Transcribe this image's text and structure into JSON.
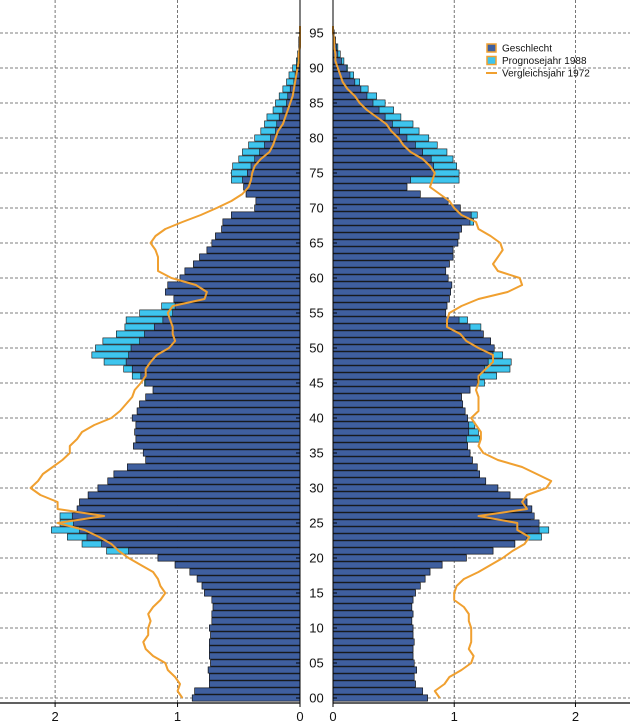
{
  "chart_data": {
    "type": "bar",
    "orientation": "horizontal",
    "layout": "population-pyramid",
    "colors": {
      "base": "#3f5f9f",
      "overlay": "#3ec5ee",
      "line": "#f0a030",
      "bar_edge": "#111111",
      "grid": "#555555"
    },
    "legend": {
      "position": "top-right",
      "entries": [
        {
          "label": "Geschlecht",
          "kind": "swatch",
          "color": "#3f5f9f"
        },
        {
          "label": "Prognosejahr 1988",
          "kind": "swatch",
          "color": "#3ec5ee"
        },
        {
          "label": "Vergleichsjahr 1972",
          "kind": "line",
          "color": "#f0a030"
        }
      ]
    },
    "y_axis": {
      "range": [
        0,
        96
      ],
      "ticks": [
        0,
        5,
        10,
        15,
        20,
        25,
        30,
        35,
        40,
        45,
        50,
        55,
        60,
        65,
        70,
        75,
        80,
        85,
        90,
        95
      ],
      "tick_labels": [
        "00",
        "05",
        "10",
        "15",
        "20",
        "25",
        "30",
        "35",
        "40",
        "45",
        "50",
        "55",
        "60",
        "65",
        "70",
        "75",
        "80",
        "85",
        "90",
        "95"
      ]
    },
    "x_axis_left": {
      "range": [
        0,
        2.45
      ],
      "ticks": [
        0,
        1,
        2
      ],
      "tick_labels": [
        "0",
        "1",
        "2"
      ],
      "direction": "reversed"
    },
    "x_axis_right": {
      "range": [
        0,
        2.45
      ],
      "ticks": [
        0,
        1,
        2
      ],
      "tick_labels": [
        "0",
        "1",
        "2"
      ]
    },
    "ages": [
      0,
      1,
      2,
      3,
      4,
      5,
      6,
      7,
      8,
      9,
      10,
      11,
      12,
      13,
      14,
      15,
      16,
      17,
      18,
      19,
      20,
      21,
      22,
      23,
      24,
      25,
      26,
      27,
      28,
      29,
      30,
      31,
      32,
      33,
      34,
      35,
      36,
      37,
      38,
      39,
      40,
      41,
      42,
      43,
      44,
      45,
      46,
      47,
      48,
      49,
      50,
      51,
      52,
      53,
      54,
      55,
      56,
      57,
      58,
      59,
      60,
      61,
      62,
      63,
      64,
      65,
      66,
      67,
      68,
      69,
      70,
      71,
      72,
      73,
      74,
      75,
      76,
      77,
      78,
      79,
      80,
      81,
      82,
      83,
      84,
      85,
      86,
      87,
      88,
      89,
      90,
      91,
      92,
      93,
      94,
      95,
      96
    ],
    "series": [
      {
        "name": "Geschlecht",
        "side": "left",
        "values": [
          0.88,
          0.86,
          0.74,
          0.74,
          0.75,
          0.73,
          0.74,
          0.74,
          0.74,
          0.73,
          0.74,
          0.72,
          0.72,
          0.71,
          0.72,
          0.78,
          0.8,
          0.84,
          0.9,
          1.02,
          1.16,
          1.4,
          1.62,
          1.74,
          1.8,
          1.85,
          1.86,
          1.82,
          1.8,
          1.73,
          1.65,
          1.57,
          1.52,
          1.41,
          1.26,
          1.28,
          1.36,
          1.34,
          1.35,
          1.34,
          1.37,
          1.33,
          1.31,
          1.26,
          1.2,
          1.26,
          1.3,
          1.37,
          1.42,
          1.4,
          1.38,
          1.31,
          1.27,
          1.19,
          1.12,
          1.04,
          1.02,
          1.03,
          1.1,
          1.08,
          0.98,
          0.94,
          0.87,
          0.82,
          0.76,
          0.72,
          0.69,
          0.64,
          0.63,
          0.56,
          0.37,
          0.36,
          0.44,
          0.46,
          0.47,
          0.43,
          0.4,
          0.37,
          0.33,
          0.29,
          0.24,
          0.2,
          0.19,
          0.17,
          0.14,
          0.11,
          0.1,
          0.08,
          0.05,
          0.04,
          0.03,
          0.02,
          0.01,
          0.01,
          0.01,
          0.0,
          0.0
        ]
      },
      {
        "name": "Prognosejahr 1988",
        "side": "left",
        "values": [
          0.88,
          0.86,
          0.74,
          0.74,
          0.75,
          0.73,
          0.74,
          0.74,
          0.74,
          0.73,
          0.74,
          0.72,
          0.72,
          0.71,
          0.72,
          0.78,
          0.8,
          0.84,
          0.9,
          1.02,
          1.16,
          1.58,
          1.78,
          1.9,
          2.03,
          1.96,
          1.96,
          1.82,
          1.8,
          1.73,
          1.65,
          1.57,
          1.52,
          1.41,
          1.26,
          1.28,
          1.36,
          1.34,
          1.35,
          1.34,
          1.37,
          1.33,
          1.31,
          1.26,
          1.2,
          1.27,
          1.37,
          1.44,
          1.6,
          1.7,
          1.67,
          1.61,
          1.5,
          1.43,
          1.42,
          1.31,
          1.13,
          1.03,
          1.1,
          1.08,
          0.98,
          0.94,
          0.87,
          0.82,
          0.76,
          0.72,
          0.69,
          0.64,
          0.63,
          0.56,
          0.37,
          0.36,
          0.44,
          0.46,
          0.56,
          0.56,
          0.55,
          0.5,
          0.47,
          0.42,
          0.37,
          0.32,
          0.29,
          0.27,
          0.22,
          0.2,
          0.17,
          0.14,
          0.11,
          0.09,
          0.06,
          0.03,
          0.02,
          0.01,
          0.01,
          0.0,
          0.0
        ]
      },
      {
        "name": "Vergleichsjahr 1972",
        "side": "left",
        "kind": "line",
        "values": [
          0.96,
          1.0,
          0.98,
          1.02,
          1.08,
          1.1,
          1.2,
          1.26,
          1.28,
          1.24,
          1.24,
          1.22,
          1.24,
          1.2,
          1.14,
          1.1,
          1.14,
          1.16,
          1.2,
          1.3,
          1.4,
          1.48,
          1.54,
          1.64,
          1.76,
          1.98,
          1.6,
          1.98,
          1.98,
          2.12,
          2.2,
          2.14,
          2.1,
          2.02,
          1.94,
          1.88,
          1.88,
          1.82,
          1.78,
          1.68,
          1.54,
          1.47,
          1.42,
          1.37,
          1.35,
          1.3,
          1.26,
          1.26,
          1.22,
          1.17,
          1.07,
          1.02,
          1.04,
          1.04,
          1.06,
          1.08,
          1.04,
          0.78,
          0.76,
          0.85,
          1.05,
          1.16,
          1.16,
          1.16,
          1.18,
          1.22,
          1.18,
          1.1,
          0.96,
          0.81,
          0.68,
          0.56,
          0.47,
          0.42,
          0.4,
          0.39,
          0.37,
          0.32,
          0.25,
          0.22,
          0.2,
          0.18,
          0.14,
          0.12,
          0.1,
          0.08,
          0.06,
          0.05,
          0.04,
          0.03,
          0.02,
          0.01,
          0.01,
          0.0,
          0.0,
          0.0,
          0.0
        ]
      },
      {
        "name": "Geschlecht",
        "side": "right",
        "values": [
          0.78,
          0.74,
          0.68,
          0.67,
          0.69,
          0.67,
          0.66,
          0.66,
          0.67,
          0.66,
          0.66,
          0.65,
          0.66,
          0.65,
          0.66,
          0.68,
          0.72,
          0.76,
          0.8,
          0.9,
          1.1,
          1.32,
          1.5,
          1.6,
          1.7,
          1.7,
          1.66,
          1.64,
          1.6,
          1.46,
          1.36,
          1.26,
          1.21,
          1.19,
          1.15,
          1.13,
          1.11,
          1.1,
          1.12,
          1.12,
          1.11,
          1.09,
          1.07,
          1.06,
          1.13,
          1.19,
          1.21,
          1.25,
          1.28,
          1.32,
          1.33,
          1.3,
          1.24,
          1.13,
          1.04,
          0.93,
          0.94,
          0.96,
          0.97,
          0.98,
          0.95,
          0.93,
          0.96,
          0.99,
          0.99,
          1.03,
          1.04,
          1.06,
          1.13,
          1.14,
          1.05,
          0.95,
          0.72,
          0.61,
          0.64,
          0.84,
          0.83,
          0.81,
          0.74,
          0.68,
          0.61,
          0.55,
          0.49,
          0.43,
          0.38,
          0.33,
          0.28,
          0.23,
          0.18,
          0.14,
          0.11,
          0.07,
          0.04,
          0.03,
          0.02,
          0.01,
          0.0
        ]
      },
      {
        "name": "Prognosejahr 1988",
        "side": "right",
        "values": [
          0.78,
          0.74,
          0.68,
          0.67,
          0.69,
          0.67,
          0.66,
          0.66,
          0.67,
          0.66,
          0.66,
          0.65,
          0.66,
          0.65,
          0.66,
          0.68,
          0.72,
          0.76,
          0.8,
          0.9,
          1.1,
          1.32,
          1.5,
          1.72,
          1.78,
          1.63,
          1.63,
          1.64,
          1.6,
          1.46,
          1.36,
          1.26,
          1.21,
          1.19,
          1.15,
          1.13,
          1.11,
          1.21,
          1.2,
          1.17,
          1.11,
          1.09,
          1.07,
          1.06,
          1.13,
          1.25,
          1.35,
          1.46,
          1.47,
          1.4,
          1.33,
          1.3,
          1.24,
          1.22,
          1.11,
          0.93,
          0.94,
          0.96,
          0.97,
          0.98,
          0.95,
          0.93,
          0.96,
          0.99,
          0.99,
          1.03,
          1.04,
          1.06,
          1.16,
          1.19,
          1.05,
          0.95,
          0.72,
          0.61,
          1.04,
          1.04,
          1.02,
          0.99,
          0.94,
          0.86,
          0.79,
          0.71,
          0.66,
          0.56,
          0.5,
          0.43,
          0.36,
          0.29,
          0.22,
          0.17,
          0.12,
          0.09,
          0.06,
          0.04,
          0.02,
          0.01,
          0.0
        ]
      },
      {
        "name": "Vergleichsjahr 1972",
        "side": "right",
        "kind": "line",
        "values": [
          0.88,
          0.84,
          0.92,
          0.96,
          1.06,
          1.14,
          1.16,
          1.12,
          1.14,
          1.14,
          1.14,
          1.12,
          1.12,
          1.08,
          1.0,
          1.0,
          1.02,
          1.08,
          1.2,
          1.3,
          1.4,
          1.48,
          1.58,
          1.62,
          1.52,
          1.52,
          1.2,
          1.6,
          1.56,
          1.6,
          1.76,
          1.8,
          1.68,
          1.56,
          1.36,
          1.24,
          1.2,
          1.22,
          1.22,
          1.18,
          1.14,
          1.2,
          1.2,
          1.2,
          1.18,
          1.2,
          1.2,
          1.26,
          1.32,
          1.32,
          1.2,
          1.1,
          1.05,
          0.94,
          0.94,
          0.96,
          1.06,
          1.2,
          1.44,
          1.56,
          1.54,
          1.36,
          1.32,
          1.36,
          1.4,
          1.38,
          1.3,
          1.2,
          1.18,
          1.06,
          1.0,
          0.96,
          0.88,
          0.8,
          0.82,
          0.84,
          0.8,
          0.74,
          0.64,
          0.58,
          0.54,
          0.48,
          0.44,
          0.36,
          0.28,
          0.22,
          0.18,
          0.12,
          0.08,
          0.06,
          0.04,
          0.02,
          0.02,
          0.01,
          0.01,
          0.0,
          0.0
        ]
      }
    ]
  }
}
